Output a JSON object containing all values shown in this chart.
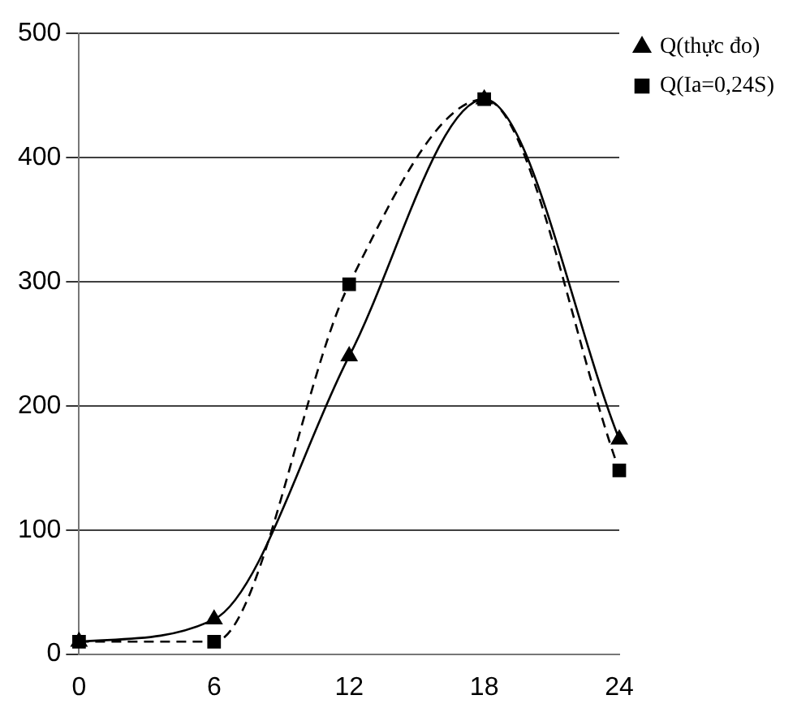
{
  "chart_data": {
    "type": "line",
    "x": [
      0,
      6,
      12,
      18,
      24
    ],
    "series": [
      {
        "name": "Q(thực đo)",
        "color": "#000000",
        "values": [
          10,
          28,
          240,
          447,
          173
        ],
        "marker": "triangle",
        "line_style": "solid"
      },
      {
        "name": "Q(Ia=0,24S)",
        "color": "#000000",
        "values": [
          10,
          10,
          298,
          447,
          148
        ],
        "marker": "square",
        "line_style": "dashed"
      }
    ],
    "xlim": [
      0,
      24
    ],
    "xticks": [
      0,
      6,
      12,
      18,
      24
    ],
    "ylim": [
      0,
      500
    ],
    "yticks": [
      0,
      100,
      200,
      300,
      400,
      500
    ],
    "grid": "y",
    "legend": "top right"
  }
}
